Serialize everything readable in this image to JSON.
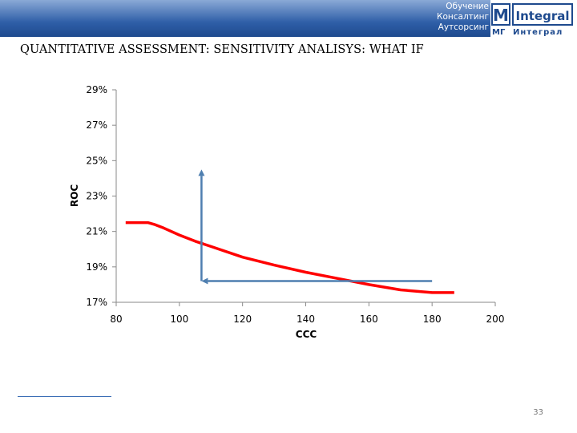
{
  "header": {
    "tagline": [
      "Обучение",
      "Консалтинг",
      "Аутсорсинг"
    ],
    "logo_top_left": "M",
    "logo_top_right": "Integral",
    "logo_bottom_left": "МГ",
    "logo_bottom_right": "Интеграл",
    "band_color": "#2f5fa8"
  },
  "title": "QUANTITATIVE ASSESSMENT: SENSITIVITY ANALISYS: WHAT IF",
  "page_number": "33",
  "chart_data": {
    "type": "line",
    "xlabel": "CCC",
    "ylabel": "ROC",
    "xlim": [
      80,
      200
    ],
    "ylim": [
      17,
      29
    ],
    "x_ticks": [
      "80",
      "100",
      "120",
      "140",
      "160",
      "180",
      "200"
    ],
    "y_ticks": [
      "17%",
      "19%",
      "21%",
      "23%",
      "25%",
      "27%",
      "29%"
    ],
    "grid": false,
    "series": [
      {
        "color": "#ff0000",
        "x": [
          83,
          86,
          90,
          92,
          95,
          100,
          105,
          110,
          120,
          130,
          140,
          150,
          160,
          170,
          180,
          187
        ],
        "y": [
          21.5,
          21.5,
          21.5,
          21.4,
          21.2,
          20.8,
          20.45,
          20.15,
          19.55,
          19.1,
          18.7,
          18.35,
          18.0,
          17.7,
          17.55,
          17.55
        ]
      }
    ],
    "arrows": [
      {
        "color": "#4f7fb0",
        "from": [
          107,
          18.2
        ],
        "to": [
          107,
          24.5
        ]
      },
      {
        "color": "#4f7fb0",
        "from": [
          180,
          18.2
        ],
        "to": [
          107,
          18.2
        ]
      }
    ]
  }
}
